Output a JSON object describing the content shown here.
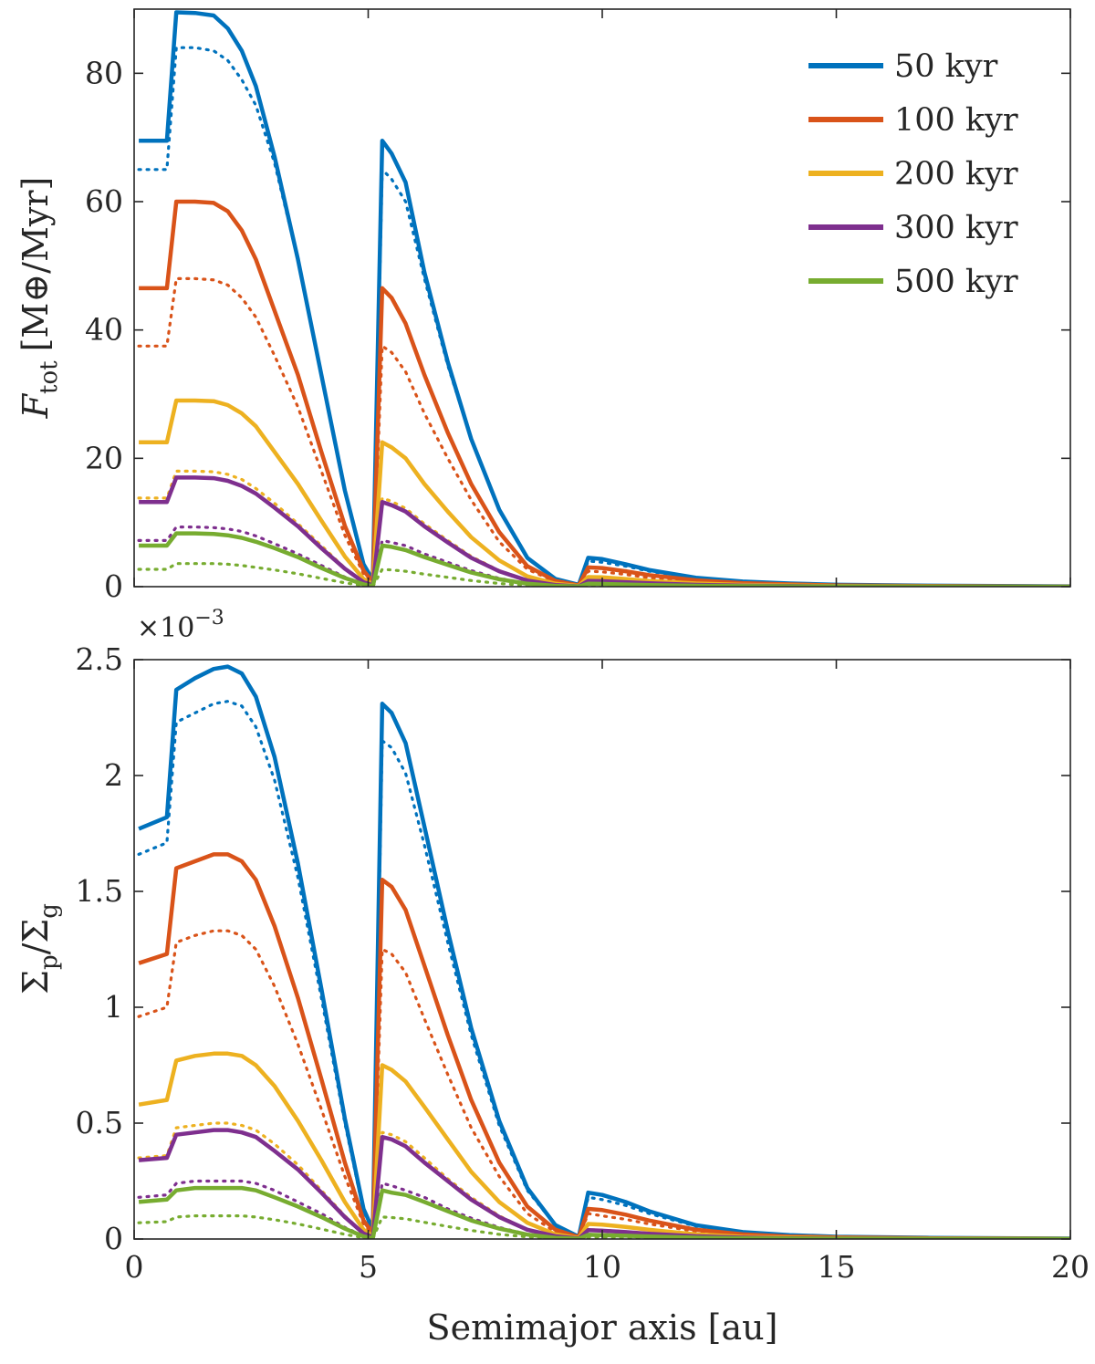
{
  "colors": {
    "50 kyr": "#0072BD",
    "100 kyr": "#D95319",
    "200 kyr": "#EDB120",
    "300 kyr": "#7E2F8E",
    "500 kyr": "#77AC30"
  },
  "chart_data": [
    {
      "type": "line",
      "panel": "top",
      "ylabel": "F_tot [M⊕/Myr]",
      "ylabel_main": "F",
      "ylabel_sub": "tot",
      "ylabel_unit": "[M⊕/Myr]",
      "xlim": [
        0,
        20
      ],
      "ylim": [
        0,
        90
      ],
      "xticks": [
        0,
        5,
        10,
        15,
        20
      ],
      "yticks": [
        0,
        20,
        40,
        60,
        80
      ],
      "ytick_labels": [
        "0",
        "20",
        "40",
        "60",
        "80"
      ],
      "legend": [
        "50 kyr",
        "100 kyr",
        "200 kyr",
        "300 kyr",
        "500 kyr"
      ],
      "legend_position": "top-right",
      "x": [
        0.1,
        0.7,
        0.9,
        1.3,
        1.7,
        2.0,
        2.3,
        2.6,
        3.0,
        3.5,
        4.0,
        4.5,
        4.9,
        5.1,
        5.3,
        5.5,
        5.8,
        6.2,
        6.7,
        7.2,
        7.8,
        8.4,
        9.0,
        9.5,
        9.7,
        10.0,
        10.5,
        11.0,
        12.0,
        13.0,
        14.0,
        15.0,
        17.0,
        20.0
      ],
      "series": [
        {
          "name": "50 kyr",
          "style": "solid",
          "values": [
            69.5,
            69.5,
            89.5,
            89.4,
            89.0,
            87.0,
            83.5,
            78.0,
            67.0,
            51.0,
            33.0,
            15.0,
            3.5,
            1.0,
            69.5,
            67.5,
            63.0,
            49.0,
            35.0,
            23.0,
            12.0,
            4.5,
            1.2,
            0.3,
            4.5,
            4.3,
            3.5,
            2.6,
            1.4,
            0.8,
            0.5,
            0.3,
            0.15,
            0.05
          ]
        },
        {
          "name": "50 kyr",
          "style": "dotted",
          "values": [
            65.0,
            65.0,
            84.0,
            84.0,
            83.5,
            82.0,
            79.0,
            75.0,
            66.0,
            51.0,
            33.0,
            15.0,
            3.5,
            0.9,
            65.0,
            63.5,
            60.0,
            48.0,
            34.5,
            23.0,
            12.0,
            4.5,
            1.2,
            0.3,
            4.0,
            3.8,
            3.2,
            2.4,
            1.3,
            0.7,
            0.45,
            0.3,
            0.15,
            0.05
          ]
        },
        {
          "name": "100 kyr",
          "style": "solid",
          "values": [
            46.5,
            46.5,
            60.0,
            60.0,
            59.8,
            58.5,
            55.5,
            51.0,
            43.0,
            33.0,
            21.0,
            9.5,
            2.5,
            0.7,
            46.5,
            45.0,
            41.0,
            33.0,
            24.0,
            16.0,
            8.5,
            3.2,
            0.9,
            0.2,
            3.0,
            2.9,
            2.4,
            1.8,
            1.0,
            0.55,
            0.35,
            0.2,
            0.1,
            0.03
          ]
        },
        {
          "name": "100 kyr",
          "style": "dotted",
          "values": [
            37.5,
            37.5,
            48.0,
            48.0,
            47.8,
            47.0,
            45.0,
            42.0,
            36.0,
            28.0,
            18.0,
            8.0,
            2.0,
            0.6,
            37.5,
            36.5,
            33.5,
            27.0,
            20.0,
            13.5,
            7.0,
            2.7,
            0.8,
            0.2,
            2.4,
            2.3,
            1.9,
            1.4,
            0.8,
            0.45,
            0.3,
            0.18,
            0.08,
            0.03
          ]
        },
        {
          "name": "200 kyr",
          "style": "solid",
          "values": [
            22.5,
            22.5,
            29.0,
            29.0,
            28.9,
            28.3,
            27.0,
            25.0,
            21.0,
            16.0,
            10.3,
            4.7,
            1.2,
            0.35,
            22.5,
            21.7,
            20.0,
            16.0,
            11.7,
            7.7,
            4.1,
            1.6,
            0.45,
            0.1,
            1.5,
            1.45,
            1.2,
            0.9,
            0.5,
            0.28,
            0.17,
            0.1,
            0.05,
            0.02
          ]
        },
        {
          "name": "200 kyr",
          "style": "dotted",
          "values": [
            13.8,
            13.8,
            18.0,
            18.0,
            17.9,
            17.5,
            16.7,
            15.3,
            13.0,
            9.8,
            6.4,
            2.9,
            0.75,
            0.2,
            13.8,
            13.3,
            12.2,
            9.8,
            7.2,
            4.7,
            2.5,
            1.0,
            0.28,
            0.06,
            0.9,
            0.88,
            0.72,
            0.55,
            0.3,
            0.17,
            0.1,
            0.06,
            0.03,
            0.01
          ]
        },
        {
          "name": "300 kyr",
          "style": "solid",
          "values": [
            13.2,
            13.2,
            17.0,
            17.0,
            16.9,
            16.5,
            15.7,
            14.5,
            12.3,
            9.4,
            6.0,
            2.8,
            0.7,
            0.2,
            13.2,
            12.7,
            11.7,
            9.4,
            6.9,
            4.5,
            2.4,
            0.95,
            0.26,
            0.06,
            0.9,
            0.85,
            0.7,
            0.52,
            0.29,
            0.16,
            0.1,
            0.06,
            0.03,
            0.01
          ]
        },
        {
          "name": "300 kyr",
          "style": "dotted",
          "values": [
            7.2,
            7.2,
            9.3,
            9.3,
            9.2,
            9.0,
            8.6,
            7.9,
            6.7,
            5.1,
            3.3,
            1.5,
            0.4,
            0.1,
            7.2,
            6.9,
            6.4,
            5.1,
            3.8,
            2.5,
            1.3,
            0.5,
            0.14,
            0.03,
            0.5,
            0.47,
            0.38,
            0.28,
            0.16,
            0.09,
            0.05,
            0.03,
            0.015,
            0.005
          ]
        },
        {
          "name": "500 kyr",
          "style": "solid",
          "values": [
            6.4,
            6.4,
            8.3,
            8.3,
            8.2,
            8.0,
            7.6,
            7.0,
            6.0,
            4.6,
            2.9,
            1.35,
            0.35,
            0.1,
            6.4,
            6.2,
            5.7,
            4.6,
            3.4,
            2.2,
            1.15,
            0.45,
            0.13,
            0.03,
            0.45,
            0.42,
            0.34,
            0.25,
            0.14,
            0.08,
            0.05,
            0.03,
            0.015,
            0.005
          ]
        },
        {
          "name": "500 kyr",
          "style": "dotted",
          "values": [
            2.7,
            2.7,
            3.6,
            3.6,
            3.6,
            3.5,
            3.3,
            3.0,
            2.6,
            2.0,
            1.3,
            0.6,
            0.15,
            0.05,
            2.7,
            2.6,
            2.4,
            1.95,
            1.45,
            0.95,
            0.5,
            0.2,
            0.06,
            0.01,
            0.2,
            0.19,
            0.15,
            0.11,
            0.06,
            0.035,
            0.02,
            0.012,
            0.006,
            0.002
          ]
        }
      ]
    },
    {
      "type": "line",
      "panel": "bottom",
      "xlabel": "Semimajor axis [au]",
      "ylabel": "Σp/Σg",
      "ylabel_main": "Σ",
      "ylabel_sub": "p",
      "ylabel_mid": "/Σ",
      "ylabel_sub2": "g",
      "exponent_label": "×10",
      "exponent_power": "−3",
      "xlim": [
        0,
        20
      ],
      "ylim": [
        0,
        2.5
      ],
      "xticks": [
        0,
        5,
        10,
        15,
        20
      ],
      "xtick_labels": [
        "0",
        "5",
        "10",
        "15",
        "20"
      ],
      "yticks": [
        0,
        0.5,
        1,
        1.5,
        2,
        2.5
      ],
      "ytick_labels": [
        "0",
        "0.5",
        "1",
        "1.5",
        "2",
        "2.5"
      ],
      "x": [
        0.1,
        0.7,
        0.9,
        1.3,
        1.7,
        2.0,
        2.3,
        2.6,
        3.0,
        3.5,
        4.0,
        4.5,
        4.9,
        5.1,
        5.3,
        5.5,
        5.8,
        6.2,
        6.7,
        7.2,
        7.8,
        8.4,
        9.0,
        9.5,
        9.7,
        10.0,
        10.5,
        11.0,
        12.0,
        13.0,
        14.0,
        15.0,
        17.0,
        20.0
      ],
      "series": [
        {
          "name": "50 kyr",
          "style": "solid",
          "values": [
            1.77,
            1.82,
            2.37,
            2.42,
            2.46,
            2.47,
            2.44,
            2.34,
            2.08,
            1.62,
            1.08,
            0.52,
            0.13,
            0.04,
            2.31,
            2.27,
            2.14,
            1.78,
            1.33,
            0.91,
            0.51,
            0.22,
            0.06,
            0.01,
            0.2,
            0.19,
            0.16,
            0.12,
            0.06,
            0.03,
            0.017,
            0.01,
            0.005,
            0.002
          ]
        },
        {
          "name": "50 kyr",
          "style": "dotted",
          "values": [
            1.66,
            1.71,
            2.23,
            2.27,
            2.31,
            2.32,
            2.3,
            2.21,
            1.98,
            1.56,
            1.04,
            0.5,
            0.12,
            0.035,
            2.15,
            2.12,
            2.01,
            1.7,
            1.28,
            0.88,
            0.49,
            0.21,
            0.06,
            0.01,
            0.18,
            0.17,
            0.145,
            0.11,
            0.055,
            0.028,
            0.015,
            0.009,
            0.004,
            0.002
          ]
        },
        {
          "name": "100 kyr",
          "style": "solid",
          "values": [
            1.19,
            1.23,
            1.6,
            1.63,
            1.66,
            1.66,
            1.63,
            1.55,
            1.35,
            1.04,
            0.69,
            0.33,
            0.08,
            0.025,
            1.55,
            1.52,
            1.42,
            1.18,
            0.88,
            0.6,
            0.33,
            0.14,
            0.04,
            0.008,
            0.13,
            0.125,
            0.105,
            0.08,
            0.04,
            0.02,
            0.011,
            0.007,
            0.003,
            0.001
          ]
        },
        {
          "name": "100 kyr",
          "style": "dotted",
          "values": [
            0.96,
            1.0,
            1.28,
            1.31,
            1.33,
            1.33,
            1.31,
            1.25,
            1.09,
            0.84,
            0.56,
            0.27,
            0.065,
            0.02,
            1.25,
            1.23,
            1.15,
            0.95,
            0.71,
            0.48,
            0.27,
            0.11,
            0.03,
            0.006,
            0.11,
            0.1,
            0.085,
            0.065,
            0.033,
            0.017,
            0.009,
            0.006,
            0.003,
            0.001
          ]
        },
        {
          "name": "200 kyr",
          "style": "solid",
          "values": [
            0.58,
            0.6,
            0.77,
            0.79,
            0.8,
            0.8,
            0.79,
            0.75,
            0.66,
            0.51,
            0.34,
            0.16,
            0.04,
            0.012,
            0.75,
            0.73,
            0.68,
            0.57,
            0.43,
            0.29,
            0.16,
            0.07,
            0.02,
            0.004,
            0.065,
            0.062,
            0.052,
            0.04,
            0.02,
            0.01,
            0.006,
            0.004,
            0.002,
            0.001
          ]
        },
        {
          "name": "200 kyr",
          "style": "dotted",
          "values": [
            0.35,
            0.36,
            0.48,
            0.49,
            0.5,
            0.5,
            0.49,
            0.47,
            0.41,
            0.32,
            0.21,
            0.1,
            0.025,
            0.008,
            0.46,
            0.45,
            0.42,
            0.35,
            0.26,
            0.18,
            0.1,
            0.04,
            0.012,
            0.003,
            0.04,
            0.038,
            0.032,
            0.024,
            0.012,
            0.006,
            0.004,
            0.002,
            0.001,
            0.0005
          ]
        },
        {
          "name": "300 kyr",
          "style": "solid",
          "values": [
            0.34,
            0.35,
            0.45,
            0.46,
            0.47,
            0.47,
            0.46,
            0.44,
            0.38,
            0.3,
            0.2,
            0.095,
            0.024,
            0.007,
            0.44,
            0.43,
            0.4,
            0.33,
            0.25,
            0.17,
            0.095,
            0.04,
            0.012,
            0.002,
            0.038,
            0.036,
            0.03,
            0.023,
            0.012,
            0.006,
            0.003,
            0.002,
            0.001,
            0.0005
          ]
        },
        {
          "name": "300 kyr",
          "style": "dotted",
          "values": [
            0.18,
            0.19,
            0.24,
            0.25,
            0.25,
            0.25,
            0.25,
            0.24,
            0.21,
            0.16,
            0.11,
            0.05,
            0.013,
            0.004,
            0.24,
            0.23,
            0.21,
            0.18,
            0.13,
            0.09,
            0.05,
            0.02,
            0.006,
            0.001,
            0.02,
            0.019,
            0.016,
            0.012,
            0.006,
            0.003,
            0.002,
            0.001,
            0.0005,
            0.0002
          ]
        },
        {
          "name": "500 kyr",
          "style": "solid",
          "values": [
            0.16,
            0.17,
            0.21,
            0.22,
            0.22,
            0.22,
            0.22,
            0.21,
            0.18,
            0.14,
            0.095,
            0.045,
            0.011,
            0.003,
            0.21,
            0.2,
            0.19,
            0.16,
            0.12,
            0.08,
            0.045,
            0.019,
            0.005,
            0.001,
            0.018,
            0.017,
            0.014,
            0.011,
            0.006,
            0.003,
            0.002,
            0.001,
            0.0005,
            0.0002
          ]
        },
        {
          "name": "500 kyr",
          "style": "dotted",
          "values": [
            0.07,
            0.075,
            0.095,
            0.1,
            0.1,
            0.1,
            0.1,
            0.095,
            0.083,
            0.065,
            0.043,
            0.02,
            0.005,
            0.0015,
            0.095,
            0.093,
            0.087,
            0.072,
            0.054,
            0.037,
            0.02,
            0.009,
            0.0025,
            0.0005,
            0.008,
            0.0075,
            0.006,
            0.0048,
            0.0025,
            0.0013,
            0.0007,
            0.0004,
            0.0002,
            0.0001
          ]
        }
      ]
    }
  ]
}
